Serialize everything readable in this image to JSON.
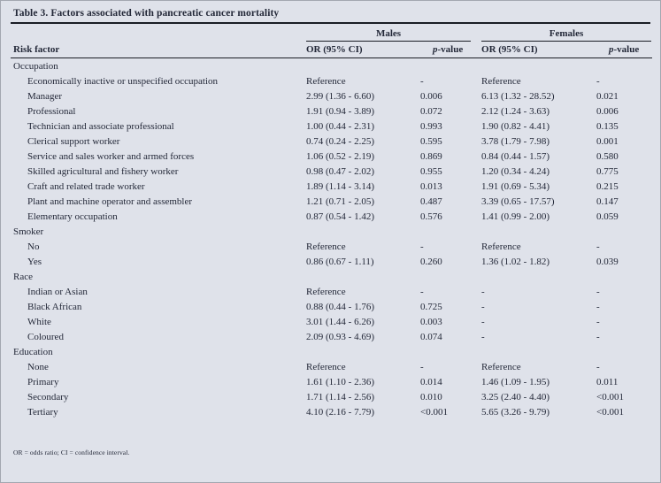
{
  "table": {
    "title": "Table 3. Factors associated with pancreatic cancer mortality",
    "column_headers": {
      "risk_factor": "Risk factor",
      "or": "OR (95% CI)",
      "p_italic": "p",
      "p_rest": "-value"
    },
    "groups": [
      {
        "label": "Males"
      },
      {
        "label": "Females"
      }
    ],
    "sections": [
      {
        "label": "Occupation",
        "rows": [
          {
            "label": "Economically inactive or unspecified occupation",
            "males_or": "Reference",
            "males_p": "-",
            "females_or": "Reference",
            "females_p": "-"
          },
          {
            "label": "Manager",
            "males_or": "2.99 (1.36 - 6.60)",
            "males_p": "0.006",
            "females_or": "6.13 (1.32 - 28.52)",
            "females_p": "0.021"
          },
          {
            "label": "Professional",
            "males_or": "1.91 (0.94 - 3.89)",
            "males_p": "0.072",
            "females_or": "2.12 (1.24 - 3.63)",
            "females_p": "0.006"
          },
          {
            "label": "Technician and associate professional",
            "males_or": "1.00 (0.44 - 2.31)",
            "males_p": "0.993",
            "females_or": "1.90 (0.82 - 4.41)",
            "females_p": "0.135"
          },
          {
            "label": "Clerical support worker",
            "males_or": "0.74 (0.24 - 2.25)",
            "males_p": "0.595",
            "females_or": "3.78 (1.79 - 7.98)",
            "females_p": "0.001"
          },
          {
            "label": "Service and sales worker and armed forces",
            "males_or": "1.06 (0.52 - 2.19)",
            "males_p": "0.869",
            "females_or": "0.84 (0.44 - 1.57)",
            "females_p": "0.580"
          },
          {
            "label": "Skilled agricultural and fishery worker",
            "males_or": "0.98 (0.47 - 2.02)",
            "males_p": "0.955",
            "females_or": "1.20 (0.34 - 4.24)",
            "females_p": "0.775"
          },
          {
            "label": "Craft and related trade worker",
            "males_or": "1.89 (1.14 - 3.14)",
            "males_p": "0.013",
            "females_or": "1.91 (0.69 - 5.34)",
            "females_p": "0.215"
          },
          {
            "label": "Plant and machine operator and assembler",
            "males_or": "1.21 (0.71 - 2.05)",
            "males_p": "0.487",
            "females_or": "3.39 (0.65 - 17.57)",
            "females_p": "0.147"
          },
          {
            "label": "Elementary occupation",
            "males_or": "0.87 (0.54 - 1.42)",
            "males_p": "0.576",
            "females_or": "1.41 (0.99 - 2.00)",
            "females_p": "0.059"
          }
        ]
      },
      {
        "label": "Smoker",
        "rows": [
          {
            "label": "No",
            "males_or": "Reference",
            "males_p": "-",
            "females_or": "Reference",
            "females_p": "-"
          },
          {
            "label": "Yes",
            "males_or": "0.86 (0.67 - 1.11)",
            "males_p": "0.260",
            "females_or": "1.36 (1.02 - 1.82)",
            "females_p": "0.039"
          }
        ]
      },
      {
        "label": "Race",
        "rows": [
          {
            "label": "Indian or Asian",
            "males_or": "Reference",
            "males_p": "-",
            "females_or": "-",
            "females_p": "-"
          },
          {
            "label": "Black African",
            "males_or": "0.88 (0.44 - 1.76)",
            "males_p": "0.725",
            "females_or": "-",
            "females_p": "-"
          },
          {
            "label": "White",
            "males_or": "3.01 (1.44 - 6.26)",
            "males_p": "0.003",
            "females_or": "-",
            "females_p": "-"
          },
          {
            "label": "Coloured",
            "males_or": "2.09 (0.93 - 4.69)",
            "males_p": "0.074",
            "females_or": "-",
            "females_p": "-"
          }
        ]
      },
      {
        "label": "Education",
        "rows": [
          {
            "label": "None",
            "males_or": "Reference",
            "males_p": "-",
            "females_or": "Reference",
            "females_p": "-"
          },
          {
            "label": "Primary",
            "males_or": "1.61 (1.10 - 2.36)",
            "males_p": "0.014",
            "females_or": "1.46 (1.09 - 1.95)",
            "females_p": "0.011"
          },
          {
            "label": "Secondary",
            "males_or": "1.71 (1.14 - 2.56)",
            "males_p": "0.010",
            "females_or": "3.25 (2.40 - 4.40)",
            "females_p": "<0.001"
          },
          {
            "label": "Tertiary",
            "males_or": "4.10 (2.16 - 7.79)",
            "males_p": "<0.001",
            "females_or": "5.65 (3.26 - 9.79)",
            "females_p": "<0.001"
          }
        ]
      }
    ],
    "footnote": "OR = odds ratio; CI = confidence interval.",
    "colors": {
      "background": "#dfe2ea",
      "text": "#232838",
      "rule": "#1a1d25",
      "frame_border": "#a3a7b0"
    }
  }
}
